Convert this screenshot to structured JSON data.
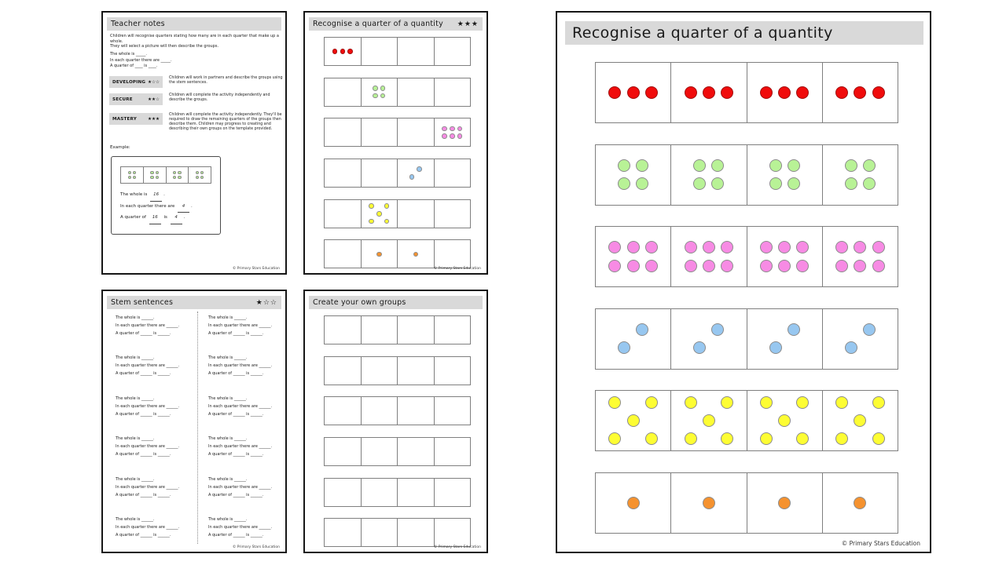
{
  "copyright": "© Primary Stars Education",
  "icons": {
    "star_filled": "★",
    "star_empty": "☆"
  },
  "colors": {
    "header_bar": "#d9d9d9",
    "cell_border": "#7f7f7f",
    "red": {
      "fill": "#f00c0c",
      "border": "#a01010"
    },
    "green": {
      "fill": "#b8f296",
      "border": "#8c8c8c"
    },
    "pink": {
      "fill": "#f78be4",
      "border": "#8c8c8c"
    },
    "blue": {
      "fill": "#97c7f0",
      "border": "#8c8c8c"
    },
    "yellow": {
      "fill": "#fdfd33",
      "border": "#8c8c8c"
    },
    "orange": {
      "fill": "#f5922f",
      "border": "#8c8c8c"
    }
  },
  "dot_patterns": {
    "red": [
      [
        1,
        1,
        1
      ]
    ],
    "green": [
      [
        1,
        1
      ],
      [
        1,
        1
      ]
    ],
    "pink": [
      [
        1,
        1,
        1
      ],
      [
        1,
        1,
        1
      ]
    ],
    "blue": [
      [
        0,
        1
      ],
      [
        1,
        0
      ]
    ],
    "yellow": [
      [
        1,
        0,
        1
      ],
      [
        0,
        1,
        0
      ],
      [
        1,
        0,
        1
      ]
    ],
    "orange": [
      [
        1
      ]
    ]
  },
  "pages": {
    "teacher_notes": {
      "title": "Teacher notes",
      "intro_lines": [
        "Children will recognise quarters stating how many are in each quarter that make up a whole.",
        "They will select a picture will then describe the groups."
      ],
      "stem_lines": [
        "The whole is _____.",
        "In each quarter there are _____.",
        "A quarter of ____ is ____."
      ],
      "levels": [
        {
          "name": "DEVELOPING",
          "stars": 1,
          "stars_total": 3,
          "description": "Children will work in partners and describe the groups using the stem sentences."
        },
        {
          "name": "SECURE",
          "stars": 2,
          "stars_total": 3,
          "description": "Children will complete the activity independently and describe the groups."
        },
        {
          "name": "MASTERY",
          "stars": 3,
          "stars_total": 3,
          "description": "Children will complete the activity independently. They'll be required to draw the remaining quarters of the groups then describe them. Children may progress to creating and describing their own groups on the template provided."
        }
      ],
      "example_label": "Example:",
      "example": {
        "rows": [
          {
            "color": "green",
            "cells": 4,
            "filled": [
              0,
              1,
              2,
              3
            ]
          }
        ],
        "sentences": [
          {
            "segments": [
              {
                "t": "The whole is "
              },
              {
                "v": "16"
              },
              {
                "t": "."
              }
            ]
          },
          {
            "segments": [
              {
                "t": "In each quarter there are "
              },
              {
                "v": "4"
              },
              {
                "t": "."
              }
            ]
          },
          {
            "segments": [
              {
                "t": "A quarter of "
              },
              {
                "v": "16"
              },
              {
                "t": " is "
              },
              {
                "v": "4"
              },
              {
                "t": "."
              }
            ]
          }
        ]
      }
    },
    "recognise_small": {
      "title": "Recognise a quarter of a quantity",
      "stars": 3,
      "stars_total": 3,
      "rows": [
        {
          "color": "red",
          "cells": 4,
          "filled": [
            0
          ]
        },
        {
          "color": "green",
          "cells": 4,
          "filled": [
            1
          ]
        },
        {
          "color": "pink",
          "cells": 4,
          "filled": [
            3
          ]
        },
        {
          "color": "blue",
          "cells": 4,
          "filled": [
            2
          ]
        },
        {
          "color": "yellow",
          "cells": 4,
          "filled": [
            1
          ]
        },
        {
          "color": "orange",
          "cells": 4,
          "filled": [
            1,
            2
          ]
        }
      ]
    },
    "stem_sentences": {
      "title": "Stem sentences",
      "stars": 1,
      "stars_total": 3,
      "columns": 2,
      "blocks_per_column": 6,
      "block_lines": [
        "The whole is ______.",
        "In each quarter there are ______.",
        "A quarter of ______ is ______."
      ]
    },
    "create_groups": {
      "title": "Create your own groups",
      "rows": 6,
      "cells_per_row": 4
    },
    "recognise_large": {
      "title": "Recognise a quarter of a quantity",
      "rows": [
        {
          "color": "red",
          "cells": 4,
          "filled": [
            0,
            1,
            2,
            3
          ]
        },
        {
          "color": "green",
          "cells": 4,
          "filled": [
            0,
            1,
            2,
            3
          ]
        },
        {
          "color": "pink",
          "cells": 4,
          "filled": [
            0,
            1,
            2,
            3
          ]
        },
        {
          "color": "blue",
          "cells": 4,
          "filled": [
            0,
            1,
            2,
            3
          ]
        },
        {
          "color": "yellow",
          "cells": 4,
          "filled": [
            0,
            1,
            2,
            3
          ]
        },
        {
          "color": "orange",
          "cells": 4,
          "filled": [
            0,
            1,
            2,
            3
          ]
        }
      ]
    }
  }
}
